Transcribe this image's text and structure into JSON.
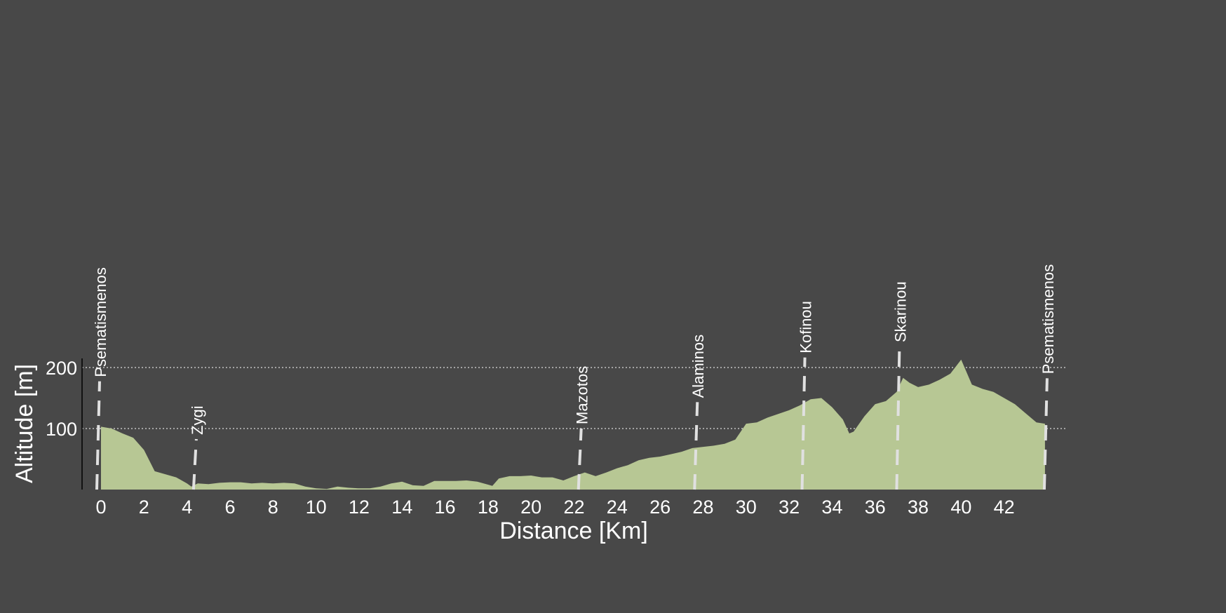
{
  "chart_data": {
    "type": "area",
    "xlabel": "Distance [Km]",
    "ylabel": "Altitude [m]",
    "xlim": [
      0,
      44
    ],
    "ylim": [
      0,
      215
    ],
    "xticks": [
      "0",
      "2",
      "4",
      "6",
      "8",
      "10",
      "12",
      "14",
      "16",
      "18",
      "20",
      "22",
      "24",
      "26",
      "28",
      "30",
      "32",
      "34",
      "36",
      "38",
      "40",
      "42"
    ],
    "yticks": [
      "100",
      "200"
    ],
    "gridlines_y": [
      100,
      200
    ],
    "grid": "horizontal dotted at 100 and 200",
    "colors": {
      "background": "#484848",
      "fill": "#b7c794",
      "text": "#ffffff",
      "marker": "#e0e0e0"
    },
    "waypoints": [
      {
        "name": "Psematismenos",
        "km": 0.0
      },
      {
        "name": "Zygi",
        "km": 4.4
      },
      {
        "name": "Mazotos",
        "km": 22.3
      },
      {
        "name": "Alaminos",
        "km": 27.7
      },
      {
        "name": "Kofinou",
        "km": 32.7
      },
      {
        "name": "Skarinou",
        "km": 37.1
      },
      {
        "name": "Psematismenos",
        "km": 43.9
      }
    ],
    "series": [
      {
        "x": [
          0,
          0.5,
          1,
          1.5,
          2,
          2.5,
          3,
          3.5,
          4,
          4.2,
          4.5,
          5,
          5.5,
          6,
          6.5,
          7,
          7.5,
          8,
          8.5,
          9,
          9.5,
          10,
          10.5,
          11,
          11.5,
          12,
          12.5,
          13,
          13.5,
          14,
          14.5,
          15,
          15.5,
          16,
          16.5,
          17,
          17.5,
          18,
          18.2,
          18.5,
          19,
          19.5,
          20,
          20.5,
          21,
          21.5,
          22,
          22.5,
          23,
          23.5,
          24,
          24.5,
          25,
          25.5,
          26,
          26.5,
          27,
          27.5,
          28,
          28.5,
          29,
          29.5,
          30,
          30.5,
          31,
          31.5,
          32,
          32.5,
          33,
          33.5,
          34,
          34.5,
          34.8,
          35,
          35.5,
          36,
          36.5,
          37,
          37.3,
          37.6,
          38,
          38.5,
          39,
          39.5,
          40,
          40.5,
          41,
          41.5,
          42,
          42.5,
          43,
          43.5,
          43.9
        ],
        "y": [
          103,
          100,
          92,
          85,
          65,
          30,
          25,
          20,
          10,
          5,
          10,
          9,
          11,
          12,
          12,
          10,
          11,
          10,
          11,
          10,
          5,
          2,
          1,
          5,
          3,
          2,
          2,
          5,
          10,
          13,
          7,
          6,
          14,
          14,
          14,
          15,
          13,
          8,
          6,
          18,
          22,
          22,
          23,
          20,
          20,
          15,
          22,
          28,
          22,
          28,
          35,
          40,
          48,
          52,
          54,
          58,
          62,
          68,
          70,
          72,
          75,
          82,
          108,
          110,
          118,
          124,
          130,
          138,
          148,
          150,
          135,
          115,
          92,
          95,
          120,
          140,
          145,
          160,
          183,
          175,
          168,
          172,
          180,
          190,
          213,
          172,
          165,
          160,
          150,
          140,
          125,
          110,
          108
        ]
      }
    ]
  }
}
